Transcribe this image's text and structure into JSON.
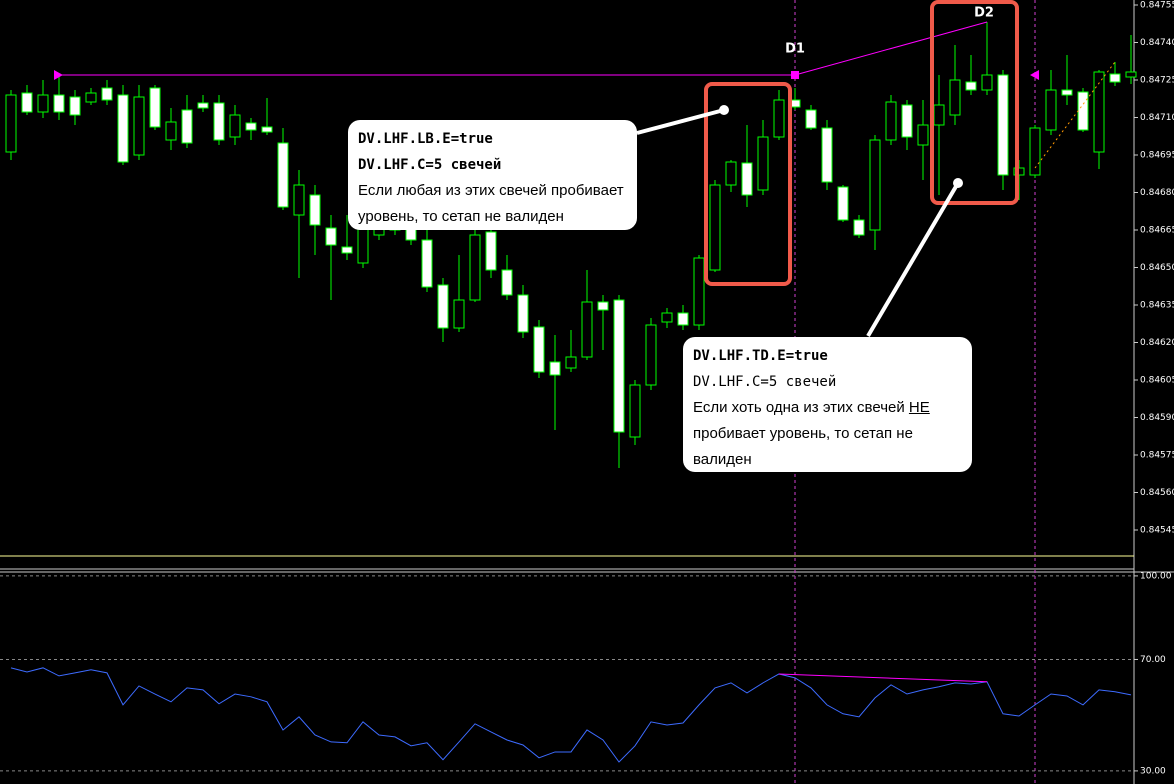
{
  "chart_data": [
    {
      "type": "candlestick",
      "ylim": [
        0.845298,
        0.84757
      ],
      "yticks": [
        0.84755,
        {
          "value": 0.8474,
          "label": "0.84740"
        },
        0.84725,
        {
          "value": 0.8471,
          "label": "0.84710"
        },
        0.84695,
        {
          "value": 0.8468,
          "label": "0.84680"
        },
        0.84665,
        {
          "value": 0.8465,
          "label": "0.84650"
        },
        0.84635,
        {
          "value": 0.8462,
          "label": "0.84620"
        },
        0.84605,
        {
          "value": 0.8459,
          "label": "0.84590"
        },
        0.84575,
        {
          "value": 0.8456,
          "label": "0.84560"
        },
        0.84545
      ],
      "open": [
        0.846962,
        0.847198,
        0.847122,
        0.84719,
        0.847182,
        0.847162,
        0.847218,
        0.84719,
        0.84695,
        0.847218,
        0.84701,
        0.84713,
        0.847158,
        0.847158,
        0.847022,
        0.847078,
        0.847062,
        0.846998,
        0.84671,
        0.84679,
        0.846658,
        0.846582,
        0.846518,
        0.84663,
        0.84671,
        0.84667,
        0.84661,
        0.84643,
        0.846258,
        0.84637,
        0.846642,
        0.84649,
        0.84639,
        0.846262,
        0.846122,
        0.846098,
        0.846142,
        0.846362,
        0.84637,
        0.845822,
        0.84603,
        0.846282,
        0.846318,
        0.84627,
        0.84649,
        0.84683,
        0.846918,
        0.84681,
        0.847022,
        0.84717,
        0.84713,
        0.847058,
        0.846822,
        0.84669,
        0.84665,
        0.84701,
        0.84715,
        0.84699,
        0.84707,
        0.84711,
        0.847242,
        0.84721,
        0.84727,
        0.84687,
        0.84687,
        0.84705,
        0.84721,
        0.847202,
        0.846962,
        0.847274,
        0.847262
      ],
      "close": [
        0.84719,
        0.847122,
        0.84719,
        0.847122,
        0.84711,
        0.847198,
        0.84717,
        0.846922,
        0.847182,
        0.847062,
        0.847082,
        0.846998,
        0.847138,
        0.84701,
        0.84711,
        0.84705,
        0.847042,
        0.846742,
        0.84683,
        0.84667,
        0.84659,
        0.846558,
        0.846658,
        0.84671,
        0.84665,
        0.84661,
        0.846422,
        0.846258,
        0.84637,
        0.84663,
        0.84649,
        0.84639,
        0.846242,
        0.846082,
        0.84607,
        0.846142,
        0.846362,
        0.84633,
        0.845842,
        0.84603,
        0.84627,
        0.846318,
        0.84627,
        0.846538,
        0.84683,
        0.846922,
        0.84679,
        0.847022,
        0.84717,
        0.847142,
        0.847058,
        0.846842,
        0.84669,
        0.84663,
        0.84701,
        0.847162,
        0.847022,
        0.84707,
        0.84715,
        0.84725,
        0.84721,
        0.84727,
        0.84687,
        0.846898,
        0.847058,
        0.84721,
        0.84719,
        0.84705,
        0.847282,
        0.847242,
        0.847282
      ],
      "high": [
        0.84721,
        0.84723,
        0.84725,
        0.84727,
        0.84721,
        0.847218,
        0.84725,
        0.84723,
        0.84723,
        0.84723,
        0.847138,
        0.84719,
        0.84719,
        0.84719,
        0.84715,
        0.847098,
        0.847178,
        0.847058,
        0.84689,
        0.84683,
        0.84671,
        0.84671,
        0.84673,
        0.84677,
        0.84675,
        0.84671,
        0.84665,
        0.846458,
        0.84655,
        0.84665,
        0.84669,
        0.84655,
        0.84643,
        0.84629,
        0.84623,
        0.84625,
        0.84649,
        0.84639,
        0.84639,
        0.84605,
        0.846298,
        0.846338,
        0.84635,
        0.84655,
        0.84685,
        0.84693,
        0.84707,
        0.84709,
        0.84721,
        0.847218,
        0.84715,
        0.84709,
        0.84683,
        0.84671,
        0.84703,
        0.84719,
        0.84717,
        0.84717,
        0.84727,
        0.84739,
        0.84735,
        0.847482,
        0.84729,
        0.84693,
        0.84707,
        0.84729,
        0.84735,
        0.847218,
        0.84729,
        0.847322,
        0.84743
      ],
      "low": [
        0.84693,
        0.84711,
        0.847098,
        0.84709,
        0.84707,
        0.84715,
        0.84715,
        0.84691,
        0.84693,
        0.84705,
        0.84697,
        0.846978,
        0.847122,
        0.84699,
        0.84699,
        0.84701,
        0.84703,
        0.84673,
        0.846458,
        0.84655,
        0.84637,
        0.84653,
        0.846498,
        0.84661,
        0.84663,
        0.84659,
        0.846402,
        0.846202,
        0.846242,
        0.846362,
        0.846458,
        0.84637,
        0.846218,
        0.846058,
        0.84585,
        0.846082,
        0.84613,
        0.84617,
        0.845698,
        0.84579,
        0.84601,
        0.846258,
        0.84625,
        0.84625,
        0.846482,
        0.846802,
        0.846742,
        0.84679,
        0.84701,
        0.84713,
        0.84705,
        0.84681,
        0.846682,
        0.846618,
        0.84657,
        0.84699,
        0.84697,
        0.84685,
        0.84679,
        0.84707,
        0.84719,
        0.84719,
        0.84681,
        0.84677,
        0.846858,
        0.84703,
        0.84715,
        0.847042,
        0.846894,
        0.847226,
        0.847234
      ],
      "wick_color": "#00ff00",
      "up_fill": "#000000",
      "down_fill": "#ffffff",
      "levels": [
        {
          "value": 0.84727,
          "color": "#ff00ff"
        },
        {
          "value": 0.845346,
          "color": "#ffff99"
        }
      ],
      "annotations": [
        "D1",
        "D2"
      ]
    },
    {
      "type": "line",
      "ylim": [
        25.3,
        101.4
      ],
      "yticks": [
        {
          "value": 100,
          "label": "100.00"
        },
        {
          "value": 70,
          "label": "70.00"
        },
        {
          "value": 30,
          "label": "30.00"
        }
      ],
      "grid": true,
      "color": "#3d6bff",
      "values": [
        67.0,
        65.5,
        67.0,
        64.1,
        65.2,
        66.3,
        65.2,
        53.7,
        60.5,
        57.6,
        54.8,
        59.8,
        59.1,
        54.1,
        57.6,
        56.6,
        54.8,
        44.7,
        49.4,
        42.9,
        40.4,
        40.1,
        47.6,
        42.9,
        42.2,
        39.0,
        40.1,
        34.0,
        40.4,
        46.9,
        44.0,
        41.1,
        39.3,
        34.7,
        36.8,
        36.8,
        44.7,
        41.1,
        33.2,
        39.0,
        47.6,
        46.5,
        47.2,
        53.7,
        59.8,
        61.6,
        58.0,
        61.6,
        64.8,
        63.4,
        59.8,
        53.7,
        50.5,
        49.4,
        56.2,
        60.9,
        57.6,
        59.1,
        60.2,
        61.6,
        61.2,
        62.0,
        50.5,
        49.7,
        53.7,
        57.6,
        56.9,
        53.7,
        59.1,
        58.4,
        57.3
      ]
    }
  ],
  "callouts": [
    {
      "lines": [
        "DV.LHF.LB.E=true",
        "DV.LHF.C=5 свечей",
        "Если любая из этих свечей пробивает",
        "уровень, то сетап не валиден"
      ]
    },
    {
      "lines": [
        "DV.LHF.TD.E=true",
        "DV.LHF.C=5 свечей",
        "Если хоть одна из этих свечей",
        "НЕ",
        "пробивает уровень, то сетап не",
        "валиден"
      ]
    }
  ]
}
